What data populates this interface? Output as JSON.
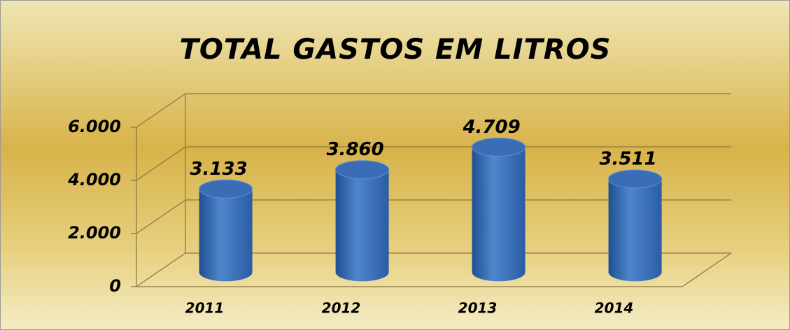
{
  "chart_data": {
    "type": "bar3d",
    "title": "TOTAL GASTOS EM LITROS",
    "categories": [
      "2011",
      "2012",
      "2013",
      "2014"
    ],
    "values": [
      3133,
      3860,
      4709,
      3511
    ],
    "value_labels": [
      "3.133",
      "3.860",
      "4.709",
      "3.511"
    ],
    "color": "#3a6db5",
    "ylim": [
      0,
      6000
    ],
    "yticks": [
      0,
      {
        "value": 2000,
        "label": "2.000"
      },
      {
        "value": 4000,
        "label": "4.000"
      },
      {
        "value": 6000,
        "label": "6.000"
      }
    ],
    "grid": true
  }
}
